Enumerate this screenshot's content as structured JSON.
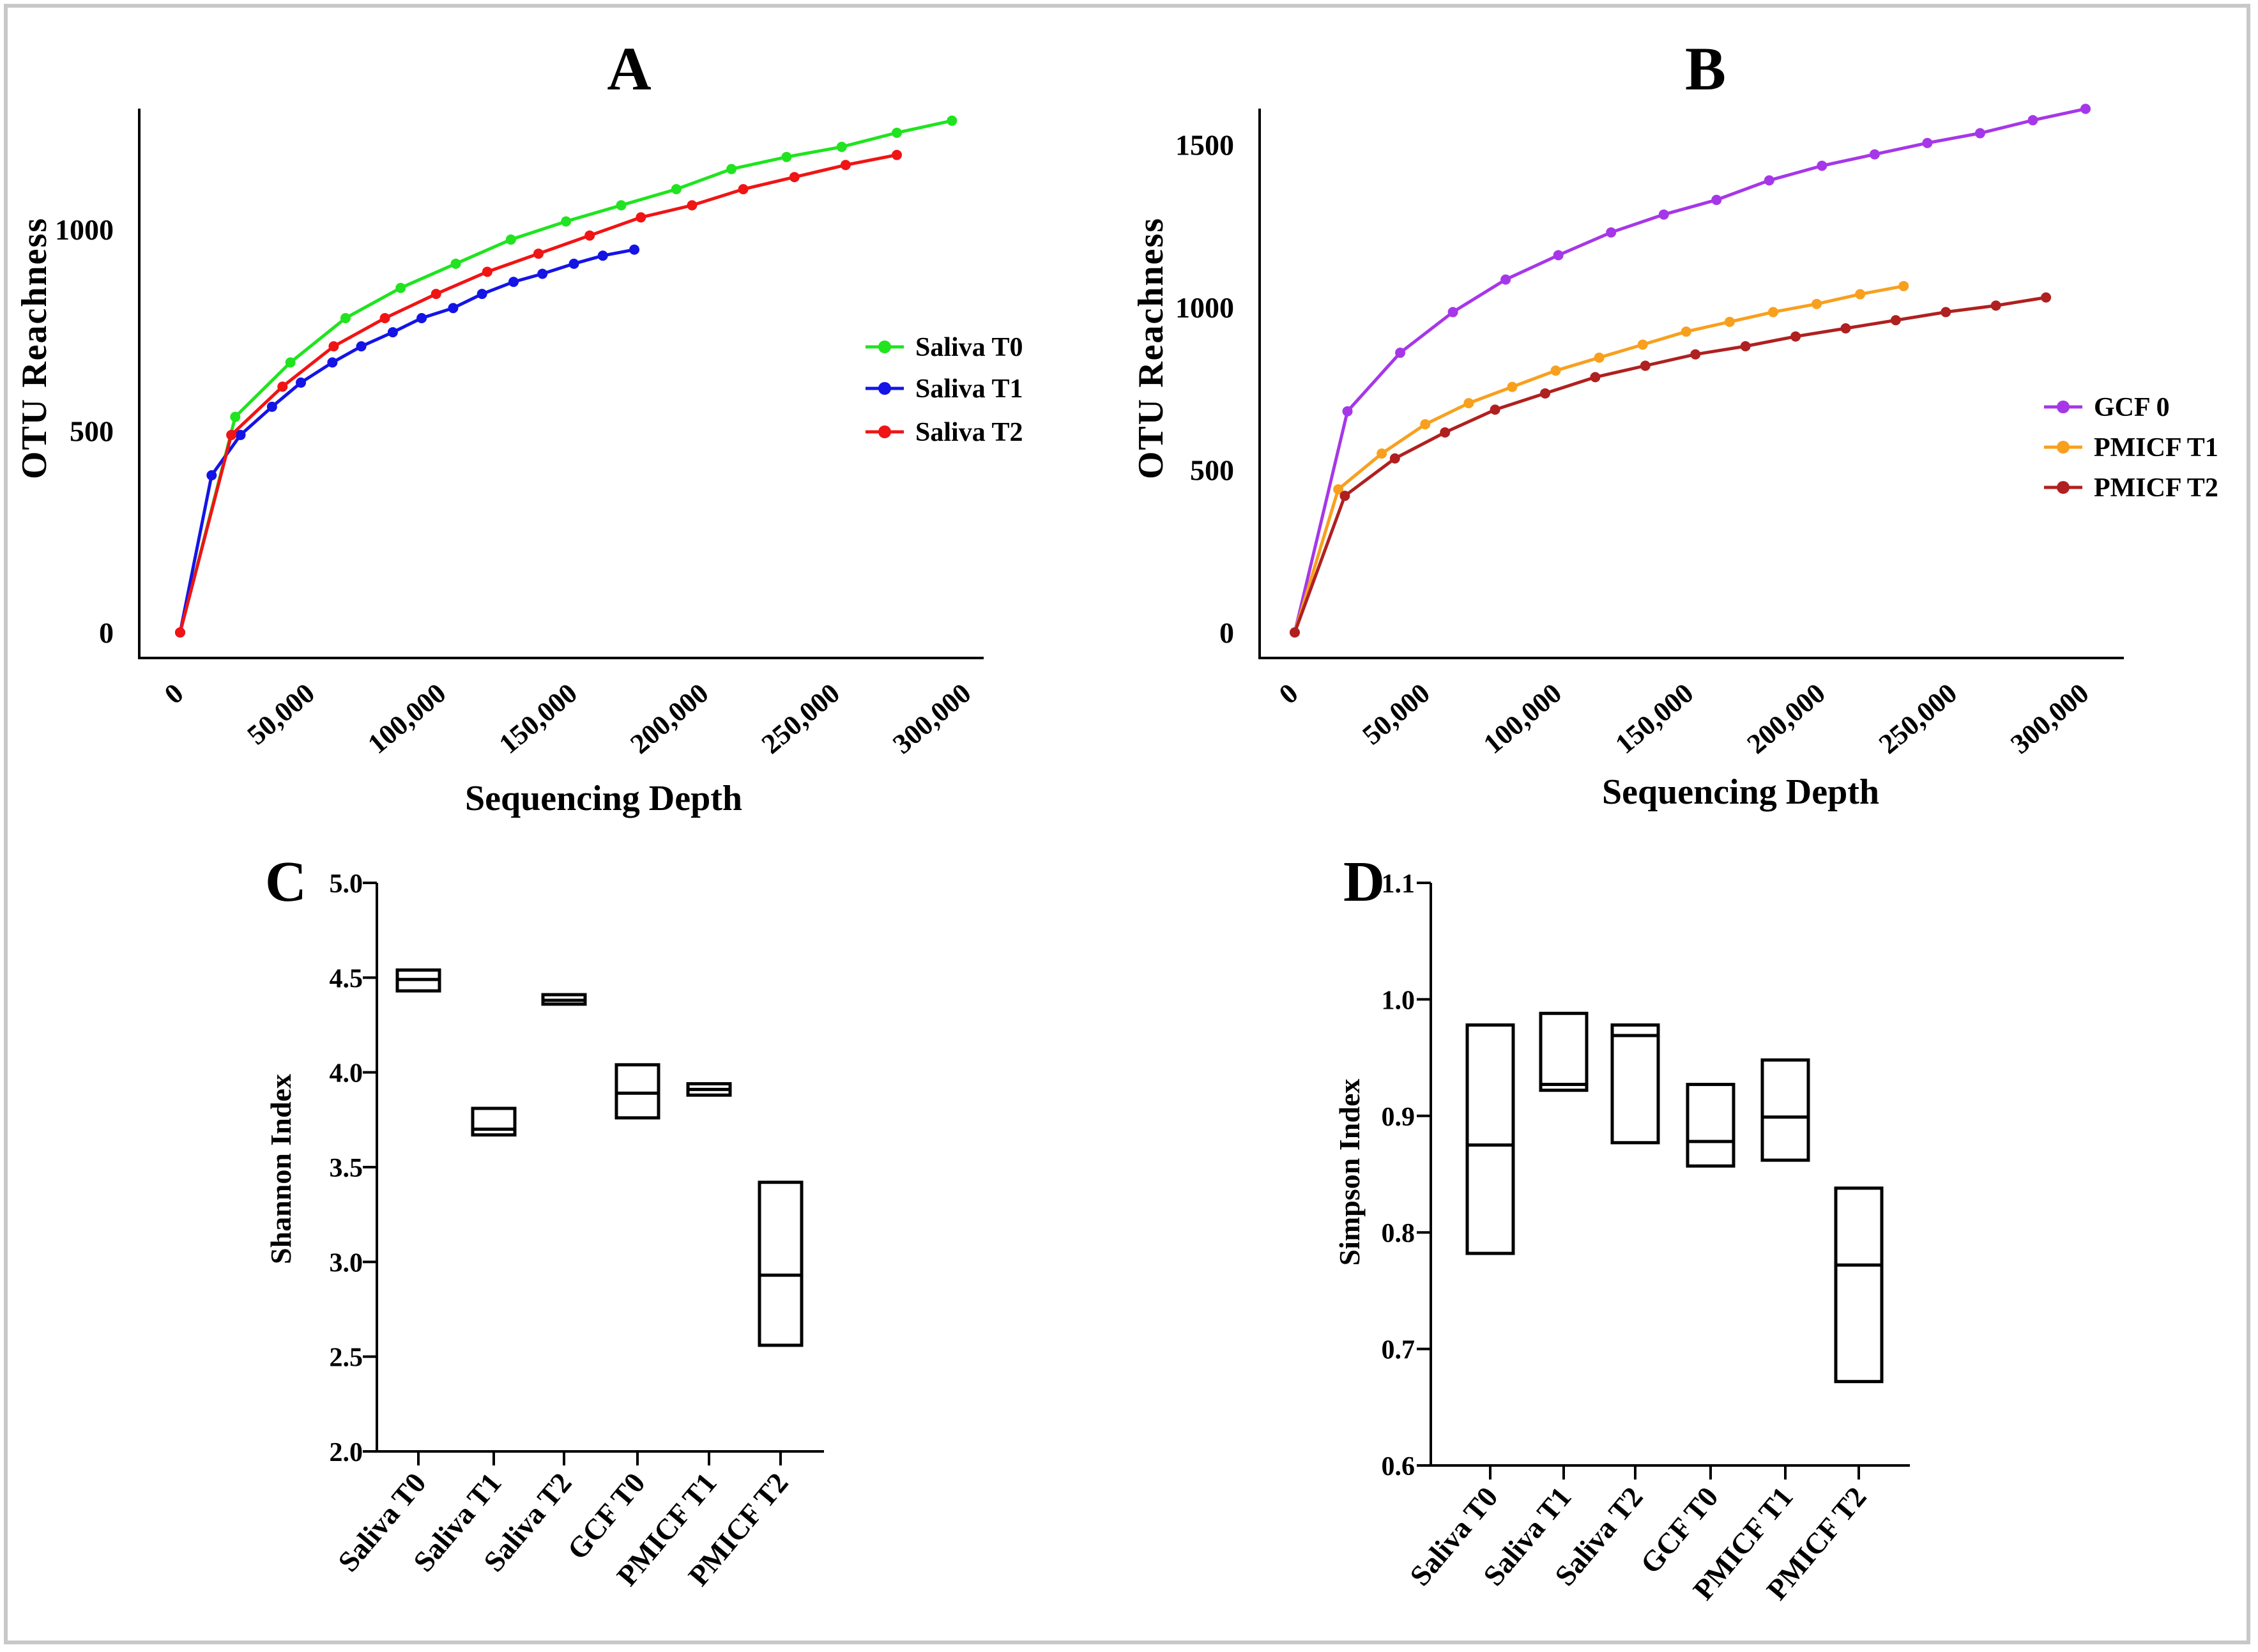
{
  "chart_data": [
    {
      "panel": "A",
      "type": "line",
      "title": "A",
      "xlabel": "Sequencing Depth",
      "ylabel": "OTU Reachness",
      "xlim": [
        0,
        300000
      ],
      "ylim": [
        0,
        1300
      ],
      "xticks": [
        0,
        50000,
        100000,
        150000,
        200000,
        250000,
        300000
      ],
      "xtick_labels": [
        "0",
        "50,000",
        "100,000",
        "150,000",
        "200,000",
        "250,000",
        "300,000"
      ],
      "yticks": [
        0,
        500,
        1000
      ],
      "ytick_labels": [
        "0",
        "500",
        "1000"
      ],
      "legend_position": "right",
      "series": [
        {
          "name": "Saliva T0",
          "color": "#1fe41f",
          "x": [
            0,
            21000,
            42000,
            63000,
            84000,
            105000,
            126000,
            147000,
            168000,
            189000,
            210000,
            231000,
            252000,
            273000,
            294000
          ],
          "y": [
            0,
            535,
            670,
            780,
            855,
            915,
            975,
            1020,
            1060,
            1100,
            1150,
            1180,
            1205,
            1240,
            1270
          ]
        },
        {
          "name": "Saliva T1",
          "color": "#1414e6",
          "x": [
            0,
            12000,
            23000,
            35000,
            46000,
            58000,
            69000,
            81000,
            92000,
            104000,
            115000,
            127000,
            138000,
            150000,
            161000,
            173000
          ],
          "y": [
            0,
            390,
            490,
            560,
            620,
            670,
            710,
            745,
            780,
            805,
            840,
            870,
            890,
            915,
            935,
            950
          ]
        },
        {
          "name": "Saliva T2",
          "color": "#f01414",
          "x": [
            0,
            19500,
            39000,
            58500,
            78000,
            97500,
            117000,
            136500,
            156000,
            175500,
            195000,
            214500,
            234000,
            253500,
            273000
          ],
          "y": [
            0,
            490,
            610,
            710,
            780,
            840,
            895,
            940,
            985,
            1030,
            1060,
            1100,
            1130,
            1160,
            1185
          ]
        }
      ]
    },
    {
      "panel": "B",
      "type": "line",
      "title": "B",
      "xlabel": "Sequencing Depth",
      "ylabel": "OTU Reachness",
      "xlim": [
        0,
        300000
      ],
      "ylim": [
        0,
        1650
      ],
      "xticks": [
        0,
        50000,
        100000,
        150000,
        200000,
        250000,
        300000
      ],
      "xtick_labels": [
        "0",
        "50,000",
        "100,000",
        "150,000",
        "200,000",
        "250,000",
        "300,000"
      ],
      "yticks": [
        0,
        500,
        1000,
        1500
      ],
      "ytick_labels": [
        "0",
        "500",
        "1000",
        "1500"
      ],
      "legend_position": "right",
      "series": [
        {
          "name": "GCF 0",
          "color": "#a637e8",
          "x": [
            0,
            20000,
            40000,
            60000,
            80000,
            100000,
            120000,
            140000,
            160000,
            180000,
            200000,
            220000,
            240000,
            260000,
            280000,
            300000
          ],
          "y": [
            0,
            680,
            860,
            985,
            1085,
            1160,
            1230,
            1285,
            1330,
            1390,
            1435,
            1470,
            1505,
            1535,
            1575,
            1610
          ]
        },
        {
          "name": "PMICF T1",
          "color": "#f8a01e",
          "x": [
            0,
            16500,
            33000,
            49500,
            66000,
            82500,
            99000,
            115500,
            132000,
            148500,
            165000,
            181500,
            198000,
            214500,
            231000
          ],
          "y": [
            0,
            440,
            550,
            640,
            705,
            755,
            805,
            845,
            885,
            925,
            955,
            985,
            1010,
            1040,
            1065
          ]
        },
        {
          "name": "PMICF T2",
          "color": "#b02020",
          "x": [
            0,
            19000,
            38000,
            57000,
            76000,
            95000,
            114000,
            133000,
            152000,
            171000,
            190000,
            209000,
            228000,
            247000,
            266000,
            285000
          ],
          "y": [
            0,
            420,
            535,
            615,
            685,
            735,
            785,
            820,
            855,
            880,
            910,
            935,
            960,
            985,
            1005,
            1030
          ]
        }
      ]
    },
    {
      "panel": "C",
      "type": "box",
      "title": "C",
      "xlabel": "",
      "ylabel": "Shannon Index",
      "ylim": [
        2.0,
        5.0
      ],
      "yticks": [
        2.0,
        2.5,
        3.0,
        3.5,
        4.0,
        4.5,
        5.0
      ],
      "ytick_labels": [
        "2.0",
        "2.5",
        "3.0",
        "3.5",
        "4.0",
        "4.5",
        "5.0"
      ],
      "categories": [
        "Saliva T0",
        "Saliva T1",
        "Saliva T2",
        "GCF T0",
        "PMICF T1",
        "PMICF T2"
      ],
      "boxes": [
        {
          "min": 4.43,
          "median": 4.49,
          "max": 4.54
        },
        {
          "min": 3.67,
          "median": 3.7,
          "max": 3.81
        },
        {
          "min": 4.36,
          "median": 4.38,
          "max": 4.41
        },
        {
          "min": 3.76,
          "median": 3.89,
          "max": 4.04
        },
        {
          "min": 3.88,
          "median": 3.91,
          "max": 3.94
        },
        {
          "min": 2.56,
          "median": 2.93,
          "max": 3.42
        }
      ]
    },
    {
      "panel": "D",
      "type": "box",
      "title": "D",
      "xlabel": "",
      "ylabel": "Simpson Index",
      "ylim": [
        0.6,
        1.1
      ],
      "yticks": [
        0.6,
        0.7,
        0.8,
        0.9,
        1.0,
        1.1
      ],
      "ytick_labels": [
        "0.6",
        "0.7",
        "0.8",
        "0.9",
        "1.0",
        "1.1"
      ],
      "categories": [
        "Saliva T0",
        "Saliva T1",
        "Saliva T2",
        "GCF T0",
        "PMICF T1",
        "PMICF T2"
      ],
      "boxes": [
        {
          "min": 0.782,
          "median": 0.875,
          "max": 0.978
        },
        {
          "min": 0.922,
          "median": 0.927,
          "max": 0.988
        },
        {
          "min": 0.877,
          "median": 0.969,
          "max": 0.978
        },
        {
          "min": 0.857,
          "median": 0.878,
          "max": 0.927
        },
        {
          "min": 0.862,
          "median": 0.899,
          "max": 0.948
        },
        {
          "min": 0.672,
          "median": 0.772,
          "max": 0.838
        }
      ]
    }
  ]
}
